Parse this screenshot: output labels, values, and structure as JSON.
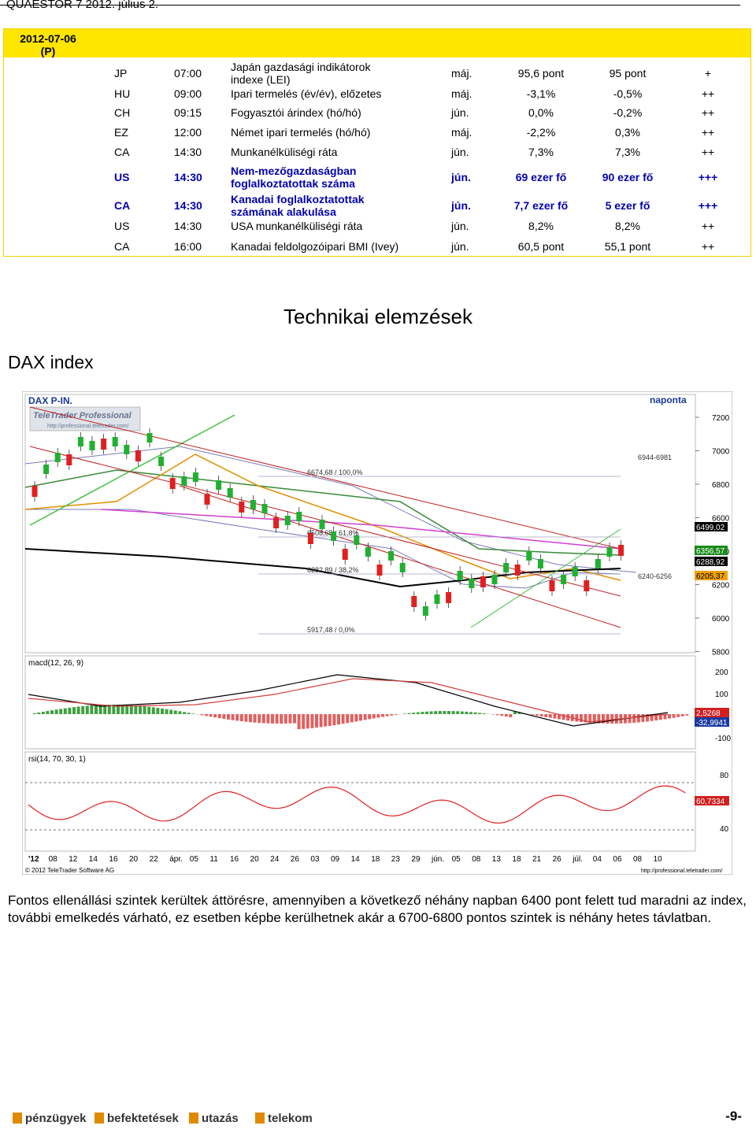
{
  "header": {
    "text": "QUAESTOR 7   2012. július 2."
  },
  "calendar": {
    "date": "2012-07-06",
    "date_sub": "(P)",
    "rows": [
      {
        "country": "JP",
        "time": "07:00",
        "event": "Japán gazdasági indikátorok indexe (LEI)",
        "month": "máj.",
        "prev": "95,6 pont",
        "exp": "95 pont",
        "imp": "+",
        "bold": false
      },
      {
        "country": "HU",
        "time": "09:00",
        "event": "Ipari termelés (év/év), előzetes",
        "month": "máj.",
        "prev": "-3,1%",
        "exp": "-0,5%",
        "imp": "++",
        "bold": false
      },
      {
        "country": "CH",
        "time": "09:15",
        "event": "Fogyasztói árindex (hó/hó)",
        "month": "jún.",
        "prev": "0,0%",
        "exp": "-0,2%",
        "imp": "++",
        "bold": false
      },
      {
        "country": "EZ",
        "time": "12:00",
        "event": "Német ipari termelés (hó/hó)",
        "month": "máj.",
        "prev": "-2,2%",
        "exp": "0,3%",
        "imp": "++",
        "bold": false
      },
      {
        "country": "CA",
        "time": "14:30",
        "event": "Munkanélküliségi ráta",
        "month": "jún.",
        "prev": "7,3%",
        "exp": "7,3%",
        "imp": "++",
        "bold": false
      },
      {
        "country": "US",
        "time": "14:30",
        "event": "Nem-mezőgazdaságban foglalkoztatottak száma",
        "month": "jún.",
        "prev": "69 ezer fő",
        "exp": "90 ezer fő",
        "imp": "+++",
        "bold": true
      },
      {
        "country": "CA",
        "time": "14:30",
        "event": "Kanadai foglalkoztatottak számának alakulása",
        "month": "jún.",
        "prev": "7,7 ezer fő",
        "exp": "5 ezer fő",
        "imp": "+++",
        "bold": true
      },
      {
        "country": "US",
        "time": "14:30",
        "event": "USA munkanélküliségi ráta",
        "month": "jún.",
        "prev": "8,2%",
        "exp": "8,2%",
        "imp": "++",
        "bold": false
      },
      {
        "country": "CA",
        "time": "16:00",
        "event": "Kanadai feldolgozóipari BMI (Ivey)",
        "month": "jún.",
        "prev": "60,5 pont",
        "exp": "55,1 pont",
        "imp": "++",
        "bold": false
      }
    ]
  },
  "section_title": "Technikai elemzések",
  "subsection": "DAX index",
  "chart": {
    "symbol": "DAX P-IN.",
    "period": "naponta",
    "brand": "TeleTrader Professional",
    "brand_url": "http://professional.teletrader.com/",
    "copyright": "© 2012 TeleTrader Software AG",
    "footer_url": "http://professional.teletrader.com/",
    "macd_label": "macd(12, 26, 9)",
    "rsi_label": "rsi(14, 70, 30, 1)",
    "price_ticks": [
      "7200",
      "7000",
      "6800",
      "6600",
      "6400",
      "6200",
      "6000",
      "5800"
    ],
    "price_tags": [
      {
        "text": "6499,02",
        "color": "#ffffff",
        "bg": "#000000"
      },
      {
        "text": "6356,57",
        "color": "#ffffff",
        "bg": "#1a8a1a"
      },
      {
        "text": "6288,92",
        "color": "#ffffff",
        "bg": "#000000"
      },
      {
        "text": "6205,37",
        "color": "#000000",
        "bg": "#f0a000"
      }
    ],
    "fib_labels": [
      "6674,68 / 100,0%",
      "6508,65 / 61,8%",
      "6282,89 / 38,2%",
      "5917,48 / 0,0%"
    ],
    "range_labels": [
      "6944-6981",
      "6240-6256"
    ],
    "macd_ticks": [
      "200",
      "100",
      "0",
      "-100"
    ],
    "macd_tags": [
      {
        "text": "2,5268",
        "bg": "#d02020"
      },
      {
        "text": "-32,9941",
        "bg": "#1a3aa0"
      }
    ],
    "rsi_ticks": [
      "80",
      "60",
      "40"
    ],
    "rsi_tag": {
      "text": "60,7334",
      "bg": "#d02020"
    },
    "date_ticks": [
      "'12",
      "08",
      "12",
      "14",
      "16",
      "20",
      "22",
      "ápr.",
      "05",
      "11",
      "16",
      "20",
      "24",
      "26",
      "03",
      "09",
      "14",
      "18",
      "23",
      "29",
      "jún.",
      "05",
      "08",
      "13",
      "18",
      "21",
      "26",
      "júl.",
      "04",
      "06",
      "08",
      "10"
    ]
  },
  "paragraph": "Fontos ellenállási szintek kerültek áttörésre, amennyiben a következő néhány napban 6400 pont felett tud maradni az index, további emelkedés várható, ez esetben képbe kerülhetnek akár a 6700-6800 pontos szintek is néhány hetes távlatban.",
  "footer": {
    "items": [
      "pénzügyek",
      "befektetések",
      "utazás",
      "telekom"
    ],
    "page": "-9-"
  }
}
